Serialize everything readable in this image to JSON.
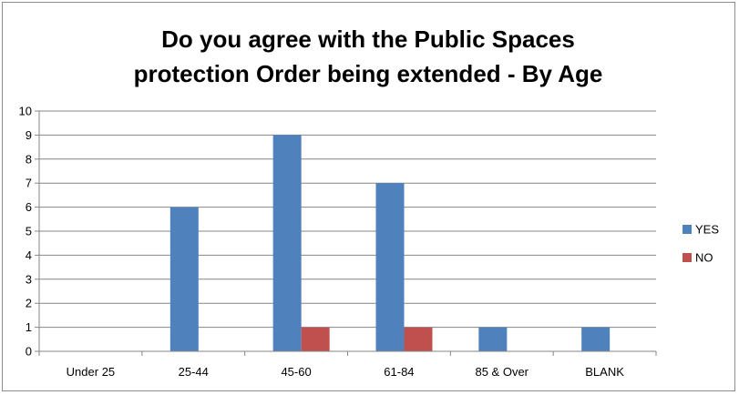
{
  "chart_data": {
    "type": "bar",
    "title_lines": [
      "Do you agree with the Public Spaces",
      "protection Order being extended - By Age"
    ],
    "categories": [
      "Under 25",
      "25-44",
      "45-60",
      "61-84",
      "85 & Over",
      "BLANK"
    ],
    "series": [
      {
        "name": "YES",
        "color": "#4f81bd",
        "values": [
          0,
          6,
          9,
          7,
          1,
          1
        ]
      },
      {
        "name": "NO",
        "color": "#c0504d",
        "values": [
          0,
          0,
          1,
          1,
          0,
          0
        ]
      }
    ],
    "ylim": [
      0,
      10
    ],
    "yticks": [
      0,
      1,
      2,
      3,
      4,
      5,
      6,
      7,
      8,
      9,
      10
    ],
    "grid": true,
    "legend_position": "right"
  }
}
